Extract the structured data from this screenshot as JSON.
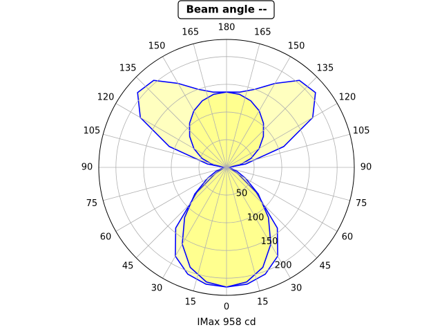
{
  "chart_data": {
    "type": "polar",
    "title": "Beam angle --",
    "xlabel": "IMax 958 cd",
    "x": [
      -180,
      -170,
      -160,
      -150,
      -140,
      -130,
      -120,
      -110,
      -100,
      -90,
      -80,
      -70,
      -60,
      -50,
      -40,
      -30,
      -20,
      -10,
      0,
      10,
      20,
      30,
      40,
      50,
      60,
      70,
      80,
      90,
      100,
      110,
      120,
      130,
      140,
      150,
      160,
      170,
      180
    ],
    "series": [
      {
        "color": "#0000ff",
        "fill": "#ffff00",
        "values": [
          136,
          138,
          150,
          175,
          205,
          210,
          180,
          110,
          35,
          3,
          5,
          10,
          25,
          70,
          143,
          185,
          205,
          214,
          216,
          214,
          205,
          185,
          143,
          70,
          25,
          10,
          5,
          3,
          35,
          110,
          180,
          210,
          205,
          175,
          150,
          138,
          136
        ]
      },
      {
        "color": "#0000ff",
        "fill": "#ffff00",
        "values": [
          136,
          134,
          128,
          118,
          104,
          87,
          68,
          47,
          24,
          3,
          8,
          20,
          40,
          75,
          118,
          160,
          192,
          210,
          216,
          210,
          192,
          160,
          118,
          75,
          40,
          20,
          8,
          3,
          24,
          47,
          68,
          87,
          104,
          118,
          128,
          134,
          136
        ]
      }
    ],
    "ylim": [
      0,
      231
    ],
    "yticks": [
      50,
      100,
      150,
      200
    ],
    "xticks": [
      {
        "value": -165,
        "label": "165"
      },
      {
        "value": -150,
        "label": "150"
      },
      {
        "value": -135,
        "label": "135"
      },
      {
        "value": -120,
        "label": "120"
      },
      {
        "value": -105,
        "label": "105"
      },
      {
        "value": -90,
        "label": "90"
      },
      {
        "value": -75,
        "label": "75"
      },
      {
        "value": -60,
        "label": "60"
      },
      {
        "value": -45,
        "label": "45"
      },
      {
        "value": -30,
        "label": "30"
      },
      {
        "value": -15,
        "label": "15"
      },
      0,
      15,
      30,
      45,
      60,
      75,
      90,
      105,
      120,
      135,
      150,
      165,
      180
    ],
    "grid": true
  }
}
